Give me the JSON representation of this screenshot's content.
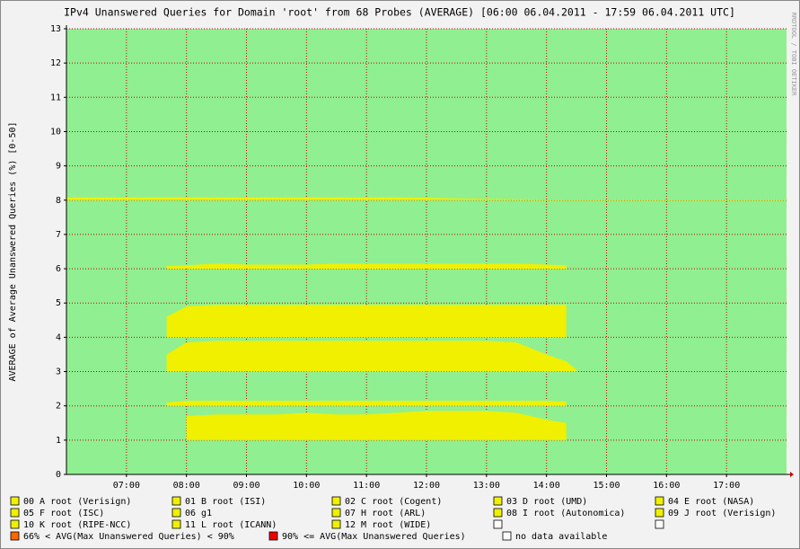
{
  "chart_data": {
    "type": "area",
    "title": "IPv4 Unanswered Queries for Domain 'root' from 68 Probes (AVERAGE)  [06:00 06.04.2011 - 17:59 06.04.2011 UTC]",
    "y_label": "AVERAGE of Average Unanswered Queries (%) [0-50]",
    "watermark": "RRDTOOL / TOBI OETIKER",
    "xlim": [
      6,
      18
    ],
    "xticks": [
      {
        "value": 7,
        "label": "07:00"
      },
      {
        "value": 8,
        "label": "08:00"
      },
      {
        "value": 9,
        "label": "09:00"
      },
      {
        "value": 10,
        "label": "10:00"
      },
      {
        "value": 11,
        "label": "11:00"
      },
      {
        "value": 12,
        "label": "12:00"
      },
      {
        "value": 13,
        "label": "13:00"
      },
      {
        "value": 14,
        "label": "14:00"
      },
      {
        "value": 15,
        "label": "15:00"
      },
      {
        "value": 16,
        "label": "16:00"
      },
      {
        "value": 17,
        "label": "17:00"
      }
    ],
    "ylim": [
      0,
      13
    ],
    "yticks": [
      0,
      1,
      2,
      3,
      4,
      5,
      6,
      7,
      8,
      9,
      10,
      11,
      12,
      13
    ],
    "grid": true,
    "x": [
      6,
      7.67,
      8,
      8.5,
      9,
      9.5,
      10,
      10.5,
      11,
      11.5,
      12,
      12.5,
      13,
      13.5,
      14,
      14.33,
      14.5,
      18
    ],
    "series": [
      {
        "name": "00 A root (Verisign)",
        "color": "#f0f000",
        "values": [
          null,
          null,
          null,
          null,
          null,
          null,
          null,
          null,
          null,
          null,
          null,
          null,
          null,
          null,
          null,
          null,
          null,
          null
        ]
      },
      {
        "name": "01 B root (ISI)",
        "color": "#f0f000",
        "values": [
          null,
          null,
          1.7,
          1.75,
          1.75,
          1.75,
          1.8,
          1.75,
          1.75,
          1.8,
          1.85,
          1.85,
          1.85,
          1.8,
          1.6,
          1.5,
          null,
          null
        ]
      },
      {
        "name": "02 C root (Cogent)",
        "color": "#f0f000",
        "values": [
          null,
          2.1,
          2.15,
          2.15,
          2.15,
          2.15,
          2.15,
          2.15,
          2.15,
          2.15,
          2.15,
          2.15,
          2.15,
          2.15,
          2.15,
          2.12,
          null,
          null
        ]
      },
      {
        "name": "03 D root (UMD)",
        "color": "#f0f000",
        "values": [
          null,
          3.5,
          3.85,
          3.9,
          3.9,
          3.9,
          3.9,
          3.9,
          3.9,
          3.9,
          3.9,
          3.9,
          3.9,
          3.85,
          3.5,
          3.3,
          3.05,
          null
        ]
      },
      {
        "name": "04 E root (NASA)",
        "color": "#f0f000",
        "values": [
          null,
          4.6,
          4.9,
          4.95,
          4.95,
          4.95,
          4.95,
          4.95,
          4.95,
          4.95,
          4.95,
          4.95,
          4.95,
          4.95,
          4.95,
          4.95,
          null,
          null
        ]
      },
      {
        "name": "05 F root (ISC)",
        "color": "#f0f000",
        "values": [
          null,
          null,
          null,
          null,
          null,
          null,
          null,
          null,
          null,
          null,
          null,
          null,
          null,
          null,
          null,
          null,
          null,
          null
        ]
      },
      {
        "name": "06 g1",
        "color": "#f0f000",
        "values": [
          null,
          6.08,
          6.1,
          6.15,
          6.12,
          6.12,
          6.12,
          6.15,
          6.15,
          6.15,
          6.15,
          6.15,
          6.15,
          6.15,
          6.12,
          6.1,
          null,
          null
        ]
      },
      {
        "name": "07 H root (ARL)",
        "color": "#f0f000",
        "values": [
          null,
          null,
          null,
          null,
          null,
          null,
          null,
          null,
          null,
          null,
          null,
          null,
          null,
          null,
          null,
          null,
          null,
          null
        ]
      },
      {
        "name": "08 I root (Autonomica)",
        "color": "#f0f000",
        "values": [
          8.08,
          8.08,
          8.08,
          8.08,
          8.08,
          8.08,
          8.08,
          8.08,
          8.08,
          8.08,
          8.07,
          8.05,
          8.04,
          8.03,
          8.02,
          8.02,
          8.02,
          8.02
        ]
      },
      {
        "name": "09 J root (Verisign)",
        "color": "#f0f000",
        "values": [
          null,
          null,
          null,
          null,
          null,
          null,
          null,
          null,
          null,
          null,
          null,
          null,
          null,
          null,
          null,
          null,
          null,
          null
        ]
      },
      {
        "name": "10 K root (RIPE-NCC)",
        "color": "#f0f000",
        "values": [
          null,
          null,
          null,
          null,
          null,
          null,
          null,
          null,
          null,
          null,
          null,
          null,
          null,
          null,
          null,
          null,
          null,
          null
        ]
      },
      {
        "name": "11 L root (ICANN)",
        "color": "#f0f000",
        "values": [
          null,
          null,
          null,
          null,
          null,
          null,
          null,
          null,
          null,
          null,
          null,
          null,
          null,
          null,
          null,
          null,
          null,
          null
        ]
      },
      {
        "name": "12 M root (WIDE)",
        "color": "#f0f000",
        "values": [
          null,
          null,
          null,
          null,
          null,
          null,
          null,
          null,
          null,
          null,
          null,
          null,
          null,
          null,
          null,
          null,
          null,
          null
        ]
      }
    ],
    "thresholds": [
      {
        "label": "66% < AVG(Max Unanswered Queries) < 90%",
        "color": "#ff6600"
      },
      {
        "label": "90% <= AVG(Max Unanswered Queries)",
        "color": "#ee0000"
      },
      {
        "label": "no data available",
        "color": "#ffffff"
      }
    ]
  }
}
